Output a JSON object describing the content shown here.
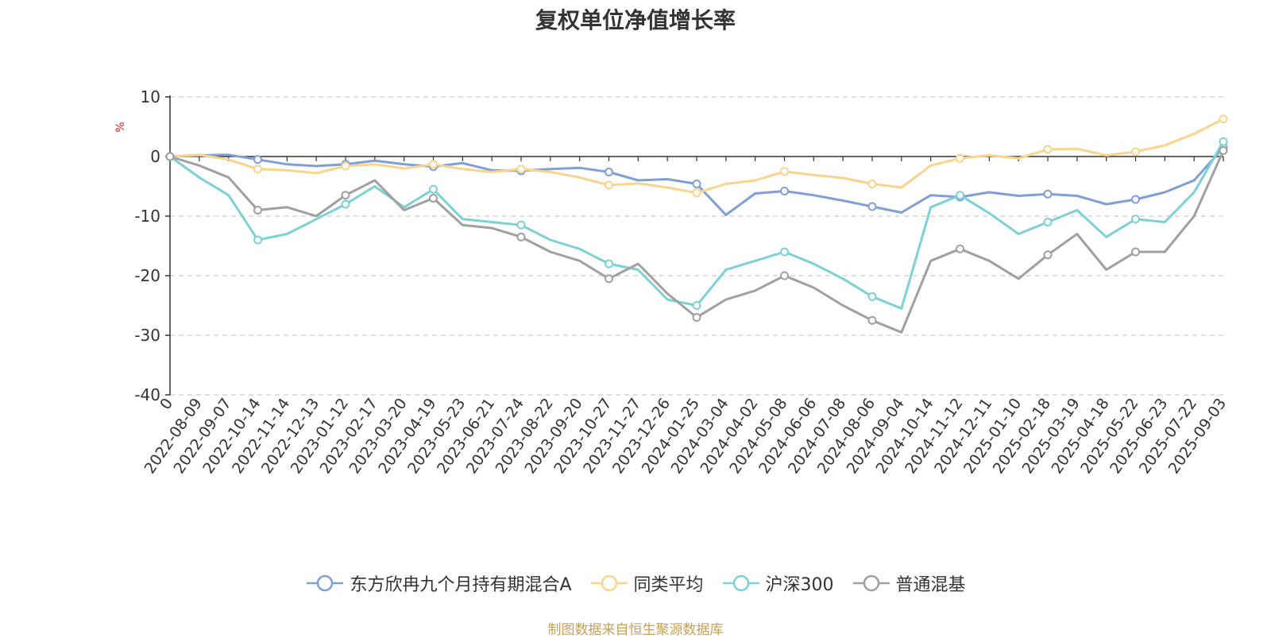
{
  "chart_data": {
    "type": "line",
    "title": "复权单位净值增长率",
    "ylabel": "%",
    "xlabel": "",
    "ylim": [
      -40,
      10
    ],
    "yticks": [
      10,
      0,
      -10,
      -20,
      -30,
      -40
    ],
    "categories": [
      "0",
      "2022-08-09",
      "2022-09-07",
      "2022-10-14",
      "2022-11-14",
      "2022-12-13",
      "2023-01-12",
      "2023-02-17",
      "2023-03-20",
      "2023-04-19",
      "2023-05-23",
      "2023-06-21",
      "2023-07-24",
      "2023-08-22",
      "2023-09-20",
      "2023-10-27",
      "2023-11-27",
      "2023-12-26",
      "2024-01-25",
      "2024-03-04",
      "2024-04-02",
      "2024-05-08",
      "2024-06-06",
      "2024-07-08",
      "2024-08-06",
      "2024-09-04",
      "2024-10-14",
      "2024-11-12",
      "2024-12-11",
      "2025-01-10",
      "2025-02-18",
      "2025-03-19",
      "2025-04-18",
      "2025-05-22",
      "2025-06-23",
      "2025-07-22",
      "2025-09-03"
    ],
    "grid": true,
    "legend_position": "bottom",
    "series": [
      {
        "name": "东方欣冉九个月持有期混合A",
        "color": "#7f9fd5",
        "values": [
          0,
          0.2,
          0.3,
          -0.5,
          -1.3,
          -1.6,
          -1.3,
          -0.7,
          -1.3,
          -1.7,
          -1.1,
          -2.3,
          -2.4,
          -2.1,
          -1.9,
          -2.6,
          -4.0,
          -3.8,
          -4.6,
          -9.8,
          -6.2,
          -5.8,
          -6.5,
          -7.4,
          -8.4,
          -9.4,
          -6.5,
          -6.8,
          -6.0,
          -6.6,
          -6.3,
          -6.6,
          -8.0,
          -7.2,
          -6.0,
          -4.0,
          1.5
        ]
      },
      {
        "name": "同类平均",
        "color": "#fad38c",
        "values": [
          0,
          0.3,
          -0.5,
          -2.1,
          -2.3,
          -2.8,
          -1.6,
          -1.3,
          -2.0,
          -1.3,
          -2.1,
          -2.6,
          -2.1,
          -2.6,
          -3.5,
          -4.8,
          -4.5,
          -5.2,
          -6.1,
          -4.6,
          -4.0,
          -2.5,
          -3.1,
          -3.6,
          -4.6,
          -5.2,
          -1.5,
          -0.3,
          0.2,
          -0.3,
          1.2,
          1.3,
          0.2,
          0.8,
          1.9,
          3.8,
          6.3
        ]
      },
      {
        "name": "沪深300",
        "color": "#7dd1d6",
        "values": [
          0,
          -3.5,
          -6.5,
          -14.0,
          -13.0,
          -10.5,
          -8.0,
          -5.0,
          -8.5,
          -5.5,
          -10.5,
          -11.0,
          -11.5,
          -14.0,
          -15.5,
          -18.0,
          -19.0,
          -24.0,
          -25.0,
          -19.0,
          -17.5,
          -16.0,
          -18.0,
          -20.5,
          -23.5,
          -25.5,
          -8.5,
          -6.5,
          -9.5,
          -13.0,
          -11.0,
          -9.0,
          -13.5,
          -10.5,
          -11.0,
          -6.0,
          2.5
        ]
      },
      {
        "name": "普通混基",
        "color": "#a0a0a0",
        "values": [
          0,
          -1.5,
          -3.5,
          -9.0,
          -8.5,
          -10.0,
          -6.5,
          -4.0,
          -9.0,
          -7.0,
          -11.5,
          -12.0,
          -13.5,
          -16.0,
          -17.5,
          -20.5,
          -18.0,
          -23.0,
          -27.0,
          -24.0,
          -22.5,
          -20.0,
          -22.0,
          -25.0,
          -27.5,
          -29.5,
          -17.5,
          -15.5,
          -17.5,
          -20.5,
          -16.5,
          -13.0,
          -19.0,
          -16.0,
          -16.0,
          -10.0,
          1.0
        ]
      }
    ]
  },
  "source_note": "制图数据来自恒生聚源数据库"
}
